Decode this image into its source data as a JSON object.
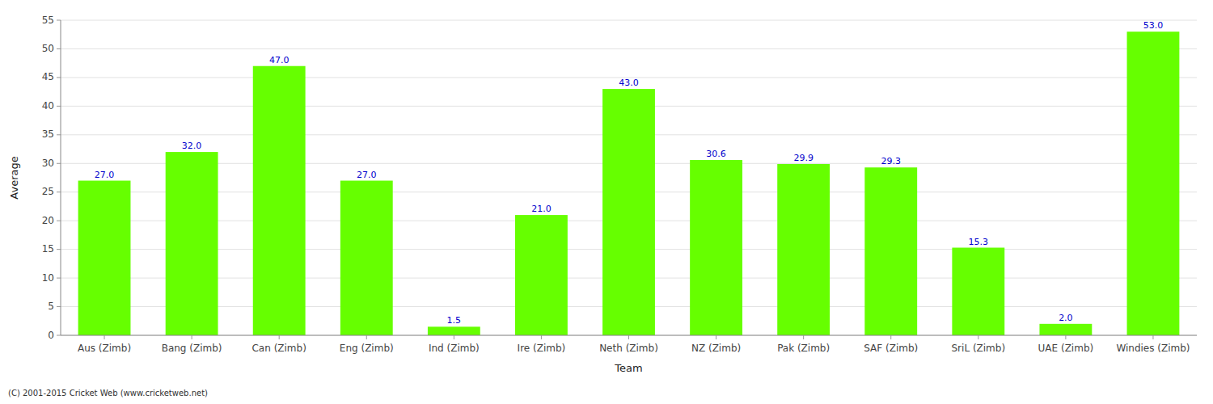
{
  "chart_data": {
    "type": "bar",
    "xlabel": "Team",
    "ylabel": "Average",
    "categories": [
      "Aus (Zimb)",
      "Bang (Zimb)",
      "Can (Zimb)",
      "Eng (Zimb)",
      "Ind (Zimb)",
      "Ire (Zimb)",
      "Neth (Zimb)",
      "NZ (Zimb)",
      "Pak (Zimb)",
      "SAF (Zimb)",
      "SriL (Zimb)",
      "UAE (Zimb)",
      "Windies (Zimb)"
    ],
    "values": [
      27.0,
      32.0,
      47.0,
      27.0,
      1.5,
      21.0,
      43.0,
      30.6,
      29.9,
      29.3,
      15.3,
      2.0,
      53.0
    ],
    "value_labels": [
      "27.0",
      "32.0",
      "47.0",
      "27.0",
      "1.5",
      "21.0",
      "43.0",
      "30.6",
      "29.9",
      "29.3",
      "15.3",
      "2.0",
      "53.0"
    ],
    "data_labels": true,
    "color": "#66ff00",
    "ylim": [
      0,
      55
    ],
    "yticks": [
      0,
      5,
      10,
      15,
      20,
      25,
      30,
      35,
      40,
      45,
      50,
      55
    ],
    "grid": true,
    "footer": "(C) 2001-2015 Cricket Web (www.cricketweb.net)"
  }
}
